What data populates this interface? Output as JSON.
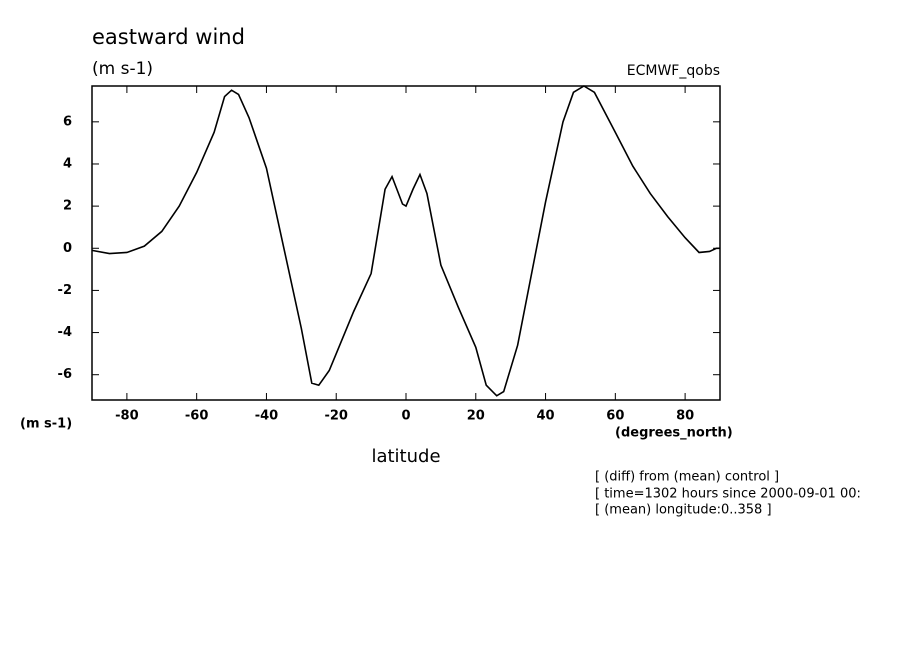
{
  "chart_data": {
    "type": "line",
    "title": "eastward wind",
    "subtitle": "(m s-1)",
    "dataset_label": "ECMWF_qobs",
    "y_axis_label": "(m s-1)",
    "x_axis_units": "(degrees_north)",
    "x_axis_label": "latitude",
    "annotations": [
      "[ (diff) from (mean) control ]",
      "[ time=1302 hours since 2000-09-01 00:",
      "[ (mean) longitude:0..358 ]"
    ],
    "x": [
      -90,
      -85,
      -80,
      -75,
      -70,
      -65,
      -60,
      -55,
      -52,
      -50,
      -48,
      -45,
      -40,
      -35,
      -30,
      -27,
      -25,
      -22,
      -20,
      -15,
      -10,
      -6,
      -4,
      -1,
      0,
      2,
      4,
      6,
      10,
      15,
      20,
      23,
      26,
      28,
      32,
      40,
      45,
      48,
      51,
      54,
      60,
      65,
      70,
      75,
      80,
      84,
      87,
      89,
      90
    ],
    "series": [
      {
        "name": "eastward wind",
        "color": "#000000",
        "values": [
          -0.1,
          -0.25,
          -0.2,
          0.1,
          0.8,
          2.0,
          3.6,
          5.5,
          7.2,
          7.5,
          7.3,
          6.2,
          3.8,
          0.0,
          -3.8,
          -6.4,
          -6.5,
          -5.8,
          -5.0,
          -3.0,
          -1.2,
          2.8,
          3.4,
          2.1,
          2.0,
          2.8,
          3.5,
          2.6,
          -0.8,
          -2.8,
          -4.7,
          -6.5,
          -7.0,
          -6.8,
          -4.6,
          2.2,
          6.0,
          7.4,
          7.7,
          7.4,
          5.5,
          3.9,
          2.6,
          1.5,
          0.5,
          -0.2,
          -0.15,
          0.0,
          0.0
        ]
      }
    ],
    "xlim": [
      -90,
      90
    ],
    "ylim": [
      -7.2,
      7.7
    ],
    "xticks": [
      -80,
      -60,
      -40,
      -20,
      0,
      20,
      40,
      60,
      80
    ],
    "yticks": [
      -6,
      -4,
      -2,
      0,
      2,
      4,
      6
    ],
    "grid": false
  }
}
